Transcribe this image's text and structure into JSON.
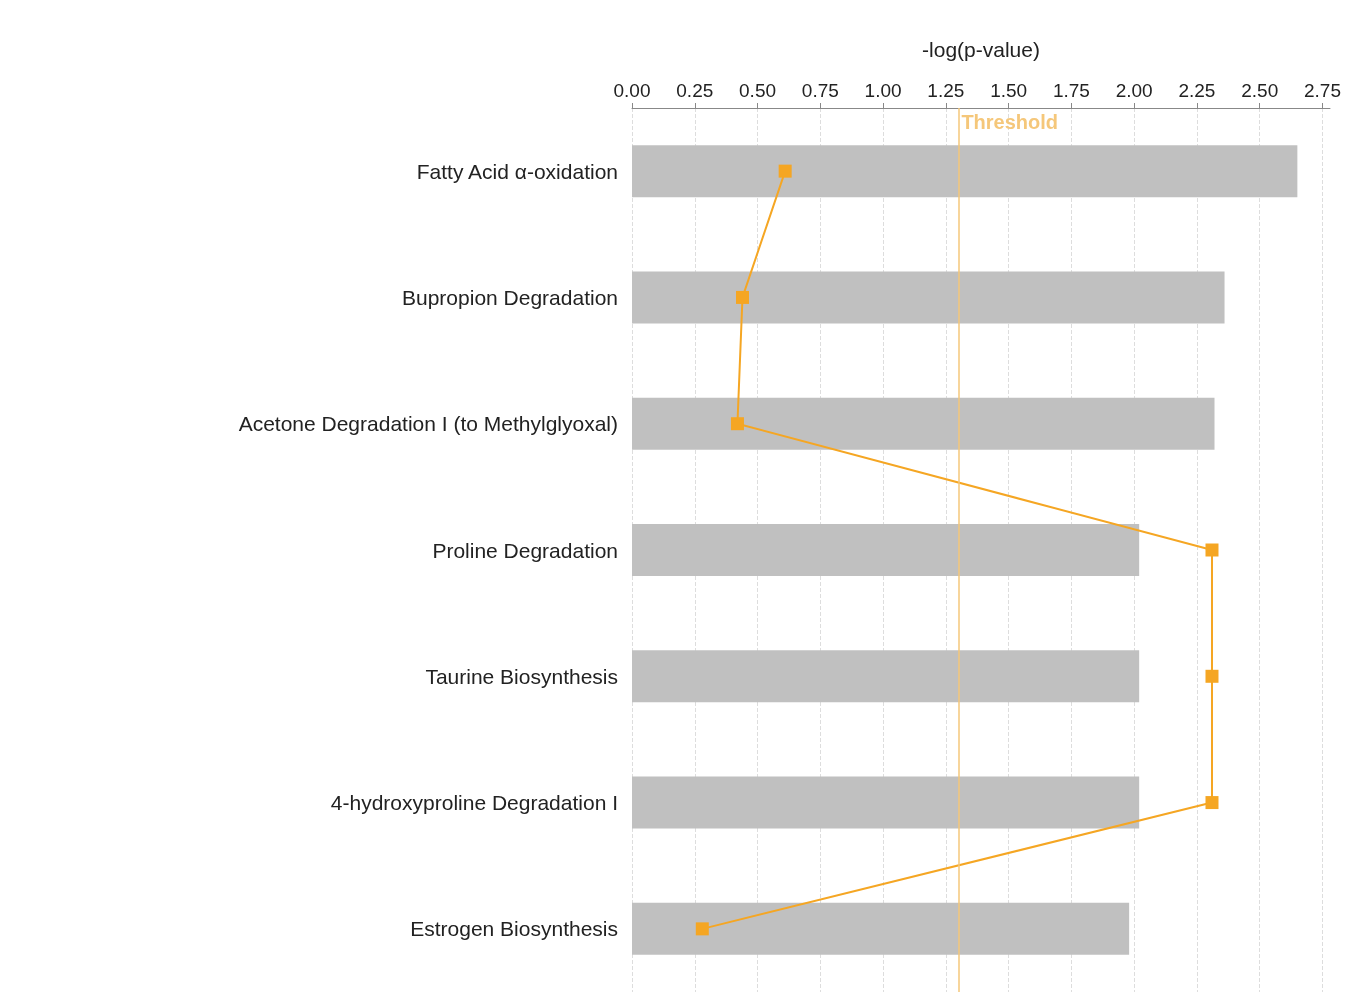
{
  "chart_data": {
    "type": "bar",
    "orientation": "horizontal",
    "xlabel": "-log(p-value)",
    "categories": [
      "Fatty Acid α-oxidation",
      "Bupropion Degradation",
      "Acetone Degradation I (to Methylglyoxal)",
      "Proline Degradation",
      "Taurine Biosynthesis",
      "4-hydroxyproline Degradation I",
      "Estrogen Biosynthesis"
    ],
    "series": [
      {
        "color": "#c0c0c0",
        "values": [
          2.65,
          2.36,
          2.32,
          2.02,
          2.02,
          2.02,
          1.98
        ]
      },
      {
        "type": "line",
        "color": "#f5a623",
        "marker": "square",
        "values": [
          0.61,
          0.44,
          0.42,
          2.31,
          2.31,
          2.31,
          0.28
        ]
      }
    ],
    "xlim": [
      0,
      2.78
    ],
    "xticks": [
      {
        "value": 0,
        "label": "0.00"
      },
      {
        "value": 0.25,
        "label": "0.25"
      },
      {
        "value": 0.5,
        "label": "0.50"
      },
      {
        "value": 0.75,
        "label": "0.75"
      },
      {
        "value": 1,
        "label": "1.00"
      },
      {
        "value": 1.25,
        "label": "1.25"
      },
      {
        "value": 1.5,
        "label": "1.50"
      },
      {
        "value": 1.75,
        "label": "1.75"
      },
      {
        "value": 2,
        "label": "2.00"
      },
      {
        "value": 2.25,
        "label": "2.25"
      },
      {
        "value": 2.5,
        "label": "2.50"
      },
      {
        "value": 2.75,
        "label": "2.75"
      }
    ],
    "ref_lines": [
      {
        "axis": "x",
        "value": 1.3,
        "label": "Threshold",
        "color": "#f5c77a"
      }
    ],
    "grid": "x"
  }
}
